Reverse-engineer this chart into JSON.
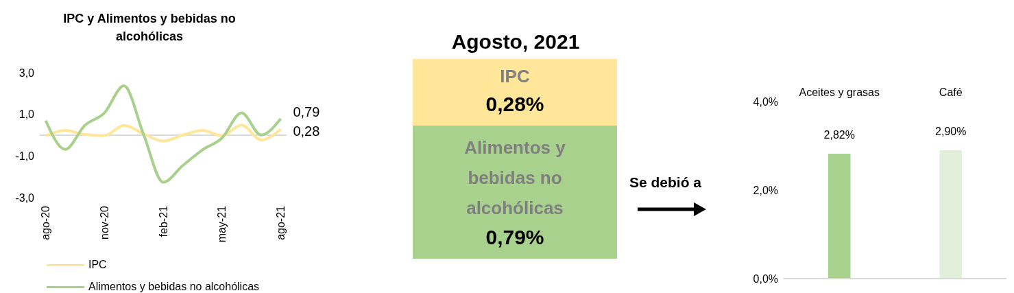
{
  "chart_data": [
    {
      "type": "line",
      "title": "IPC y Alimentos y bebidas no alcohólicas",
      "categories": [
        "ago-20",
        null,
        null,
        "nov-20",
        null,
        null,
        "feb-21",
        null,
        null,
        "may-21",
        null,
        null,
        "ago-21"
      ],
      "series": [
        {
          "name": "IPC",
          "color": "#ffe699",
          "values": [
            -0.02,
            0.23,
            0.03,
            -0.02,
            0.47,
            0.06,
            -0.28,
            0.0,
            0.23,
            -0.02,
            0.49,
            -0.23,
            0.28
          ],
          "value_labels": [
            null,
            null,
            null,
            null,
            null,
            null,
            null,
            null,
            null,
            null,
            null,
            null,
            "0,28"
          ]
        },
        {
          "name": "Alimentos y bebidas no alcohólicas",
          "color": "#a9d18e",
          "values": [
            0.7,
            -0.68,
            0.47,
            1.07,
            2.37,
            0.03,
            -2.26,
            -1.46,
            -0.71,
            -0.14,
            1.07,
            0.01,
            0.79
          ],
          "value_labels": [
            null,
            null,
            null,
            null,
            null,
            null,
            null,
            null,
            null,
            null,
            null,
            null,
            "0,79"
          ]
        }
      ],
      "ylim": [
        -3,
        3
      ],
      "yticks": [
        {
          "value": -3,
          "label": "-3,0"
        },
        {
          "value": -1,
          "label": "-1,0"
        },
        {
          "value": 1,
          "label": "1,0"
        },
        {
          "value": 3,
          "label": "3,0"
        }
      ],
      "ref_lines": [
        {
          "axis": "y",
          "value": 0,
          "color": "#d9d9d9"
        }
      ],
      "grid": false,
      "legend": "bottom",
      "marker": "none"
    },
    {
      "type": "other",
      "title": "Agosto, 2021",
      "annotations": [
        "IPC",
        "0,28%",
        "Alimentos y bebidas no alcohólicas",
        "0,79%",
        "Se debió a"
      ]
    },
    {
      "type": "bar",
      "categories": [
        "Aceites y grasas",
        "Café"
      ],
      "values": [
        2.82,
        2.9
      ],
      "colors": [
        "#a9d18e",
        "#e2efda"
      ],
      "value_labels": [
        "2,82%",
        "2,90%"
      ],
      "ylim": [
        0,
        4
      ],
      "yticks": [
        {
          "value": 0,
          "label": "0,0%"
        },
        {
          "value": 2,
          "label": "2,0%"
        },
        {
          "value": 4,
          "label": "4,0%"
        }
      ],
      "grid": false
    }
  ]
}
